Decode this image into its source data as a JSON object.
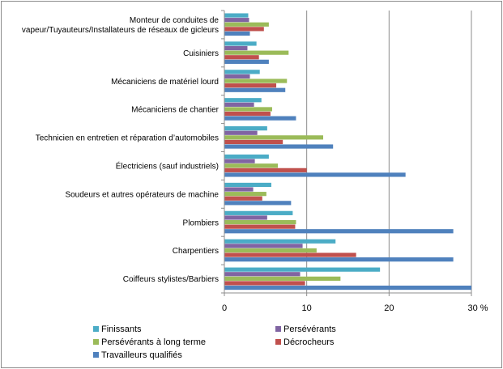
{
  "chart_data": {
    "type": "bar",
    "orientation": "horizontal",
    "categories": [
      "Monteur de conduites de|vapeur/Tuyauteurs/Installateurs de réseaux de gicleurs",
      "Cuisiniers",
      "Mécaniciens de matériel lourd",
      "Mécaniciens de chantier",
      "Technicien en entretien et réparation d’automobiles",
      "Électriciens (sauf industriels)",
      "Soudeurs et autres opérateurs de machine",
      "Plombiers",
      "Charpentiers",
      "Coiffeurs stylistes/Barbiers"
    ],
    "series": [
      {
        "name": "Finissants",
        "color": "#4bacc6",
        "values": [
          2.9,
          3.9,
          4.3,
          4.5,
          5.2,
          5.4,
          5.7,
          8.3,
          13.5,
          18.9
        ]
      },
      {
        "name": "Persévérants",
        "color": "#8064a2",
        "values": [
          3.0,
          2.8,
          3.1,
          3.6,
          4.0,
          3.7,
          3.5,
          5.2,
          9.5,
          9.2
        ]
      },
      {
        "name": "Persévérants à long terme",
        "color": "#9bbb59",
        "values": [
          5.4,
          7.8,
          7.6,
          5.8,
          12.0,
          6.5,
          5.1,
          8.7,
          11.2,
          14.1
        ]
      },
      {
        "name": "Décrocheurs",
        "color": "#c0504d",
        "values": [
          4.8,
          4.2,
          6.3,
          5.6,
          7.1,
          10.0,
          4.6,
          8.6,
          16.0,
          9.8
        ]
      },
      {
        "name": "Travailleurs qualifiés",
        "color": "#4f81bd",
        "values": [
          3.1,
          5.4,
          7.4,
          8.7,
          13.2,
          22.0,
          8.1,
          27.8,
          27.8,
          30.0
        ]
      }
    ],
    "xlim": [
      0,
      30
    ],
    "xticks": [
      "0",
      "10",
      "20",
      "30"
    ],
    "x_unit": "%",
    "grid": true,
    "legend_position": "bottom"
  }
}
